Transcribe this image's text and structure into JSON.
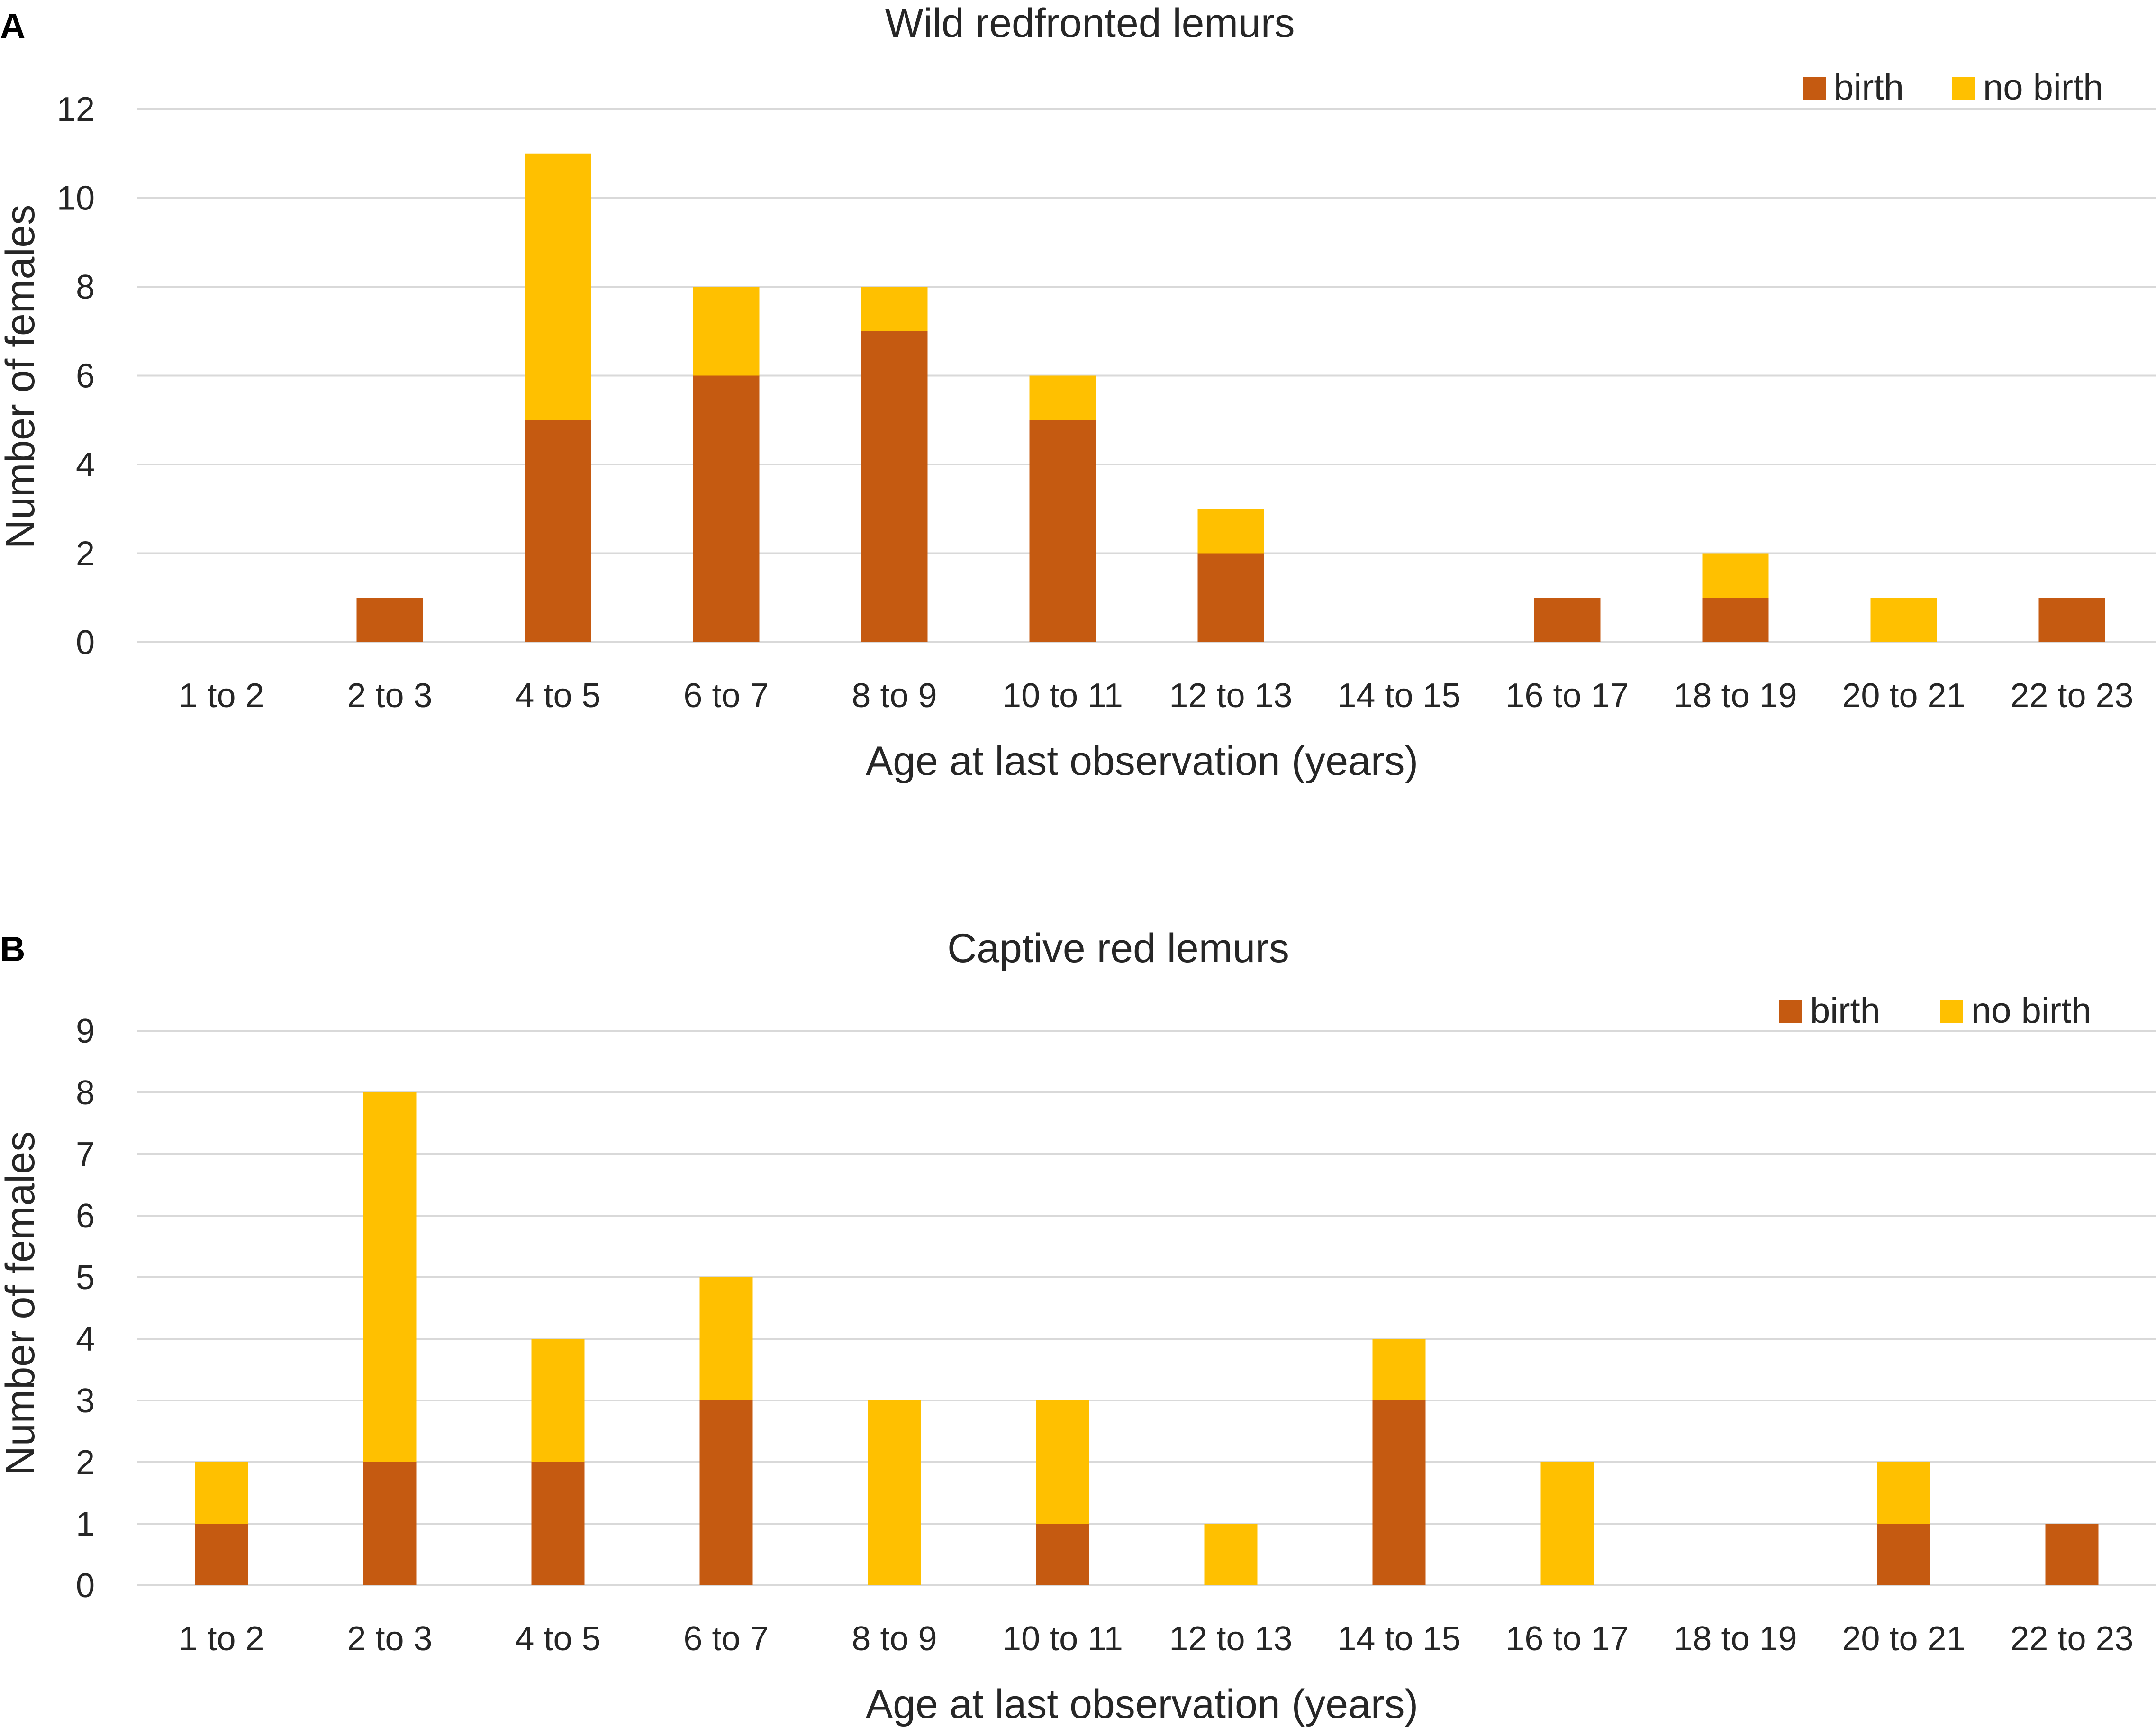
{
  "figure": {
    "panels": [
      "A",
      "B"
    ]
  },
  "colors": {
    "birth": "#c55a11",
    "no_birth": "#ffc000",
    "grid": "#d9d9d9"
  },
  "chart_data": [
    {
      "type": "bar",
      "stacked": true,
      "panel": "A",
      "title": "Wild redfronted lemurs",
      "xlabel": "Age at last observation (years)",
      "ylabel": "Number of females",
      "ylim": [
        0,
        12
      ],
      "yticks": [
        0,
        2,
        4,
        6,
        8,
        10,
        12
      ],
      "legend_position": "top-right",
      "categories": [
        "1 to 2",
        "2 to 3",
        "4 to 5",
        "6 to 7",
        "8 to 9",
        "10 to 11",
        "12 to 13",
        "14 to 15",
        "16 to 17",
        "18 to 19",
        "20 to 21",
        "22 to 23"
      ],
      "series": [
        {
          "name": "birth",
          "values": [
            0,
            1,
            5,
            6,
            7,
            5,
            2,
            0,
            1,
            1,
            0,
            1
          ]
        },
        {
          "name": "no birth",
          "values": [
            0,
            0,
            6,
            2,
            1,
            1,
            1,
            0,
            0,
            1,
            1,
            0
          ]
        }
      ]
    },
    {
      "type": "bar",
      "stacked": true,
      "panel": "B",
      "title": "Captive red lemurs",
      "xlabel": "Age at last observation (years)",
      "ylabel": "Number of females",
      "ylim": [
        0,
        9
      ],
      "yticks": [
        0,
        1,
        2,
        3,
        4,
        5,
        6,
        7,
        8,
        9
      ],
      "legend_position": "top-right",
      "categories": [
        "1 to 2",
        "2 to 3",
        "4 to 5",
        "6 to 7",
        "8 to 9",
        "10 to 11",
        "12 to 13",
        "14 to 15",
        "16 to 17",
        "18 to 19",
        "20 to 21",
        "22 to 23"
      ],
      "series": [
        {
          "name": "birth",
          "values": [
            1,
            2,
            2,
            3,
            0,
            1,
            0,
            3,
            0,
            0,
            1,
            1
          ]
        },
        {
          "name": "no birth",
          "values": [
            1,
            6,
            2,
            2,
            3,
            2,
            1,
            1,
            2,
            0,
            1,
            0
          ]
        }
      ]
    }
  ]
}
